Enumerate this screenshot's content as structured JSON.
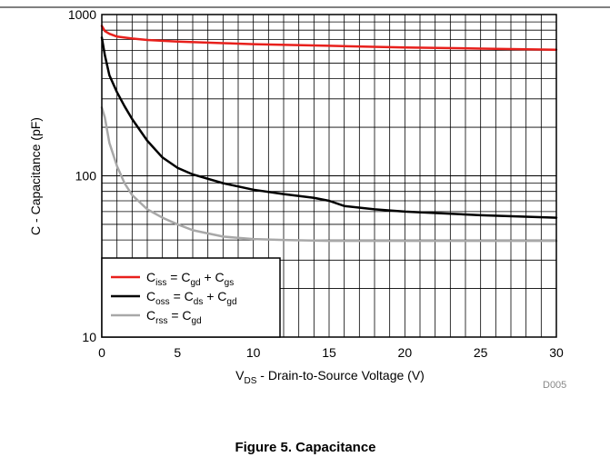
{
  "page": {
    "figure_code": "D005",
    "caption": "Figure 5. Capacitance"
  },
  "chart_data": {
    "type": "line",
    "xlabel": {
      "main": "V",
      "sub": "DS",
      "rest": " - Drain-to-Source Voltage (V)"
    },
    "ylabel": "C - Capacitance (pF)",
    "xlim": [
      0,
      30
    ],
    "ylim": [
      10,
      1000
    ],
    "yscale": "log",
    "grid": true,
    "legend_position": "bottom-left",
    "x_ticks": [
      0,
      5,
      10,
      15,
      20,
      25,
      30
    ],
    "y_ticks": [
      10,
      100,
      1000
    ],
    "colors": {
      "ciss": "#e8201c",
      "coss": "#000000",
      "crss": "#a8a8a8"
    },
    "series": [
      {
        "key": "ciss",
        "legend": [
          {
            "t": "C",
            "s": ""
          },
          {
            "t": "iss",
            "s": "sub"
          },
          {
            "t": " = C",
            "s": ""
          },
          {
            "t": "gd",
            "s": "sub"
          },
          {
            "t": " + C",
            "s": ""
          },
          {
            "t": "gs",
            "s": "sub"
          }
        ],
        "x": [
          0,
          0.2,
          0.5,
          1,
          2,
          3,
          5,
          8,
          10,
          15,
          20,
          25,
          30
        ],
        "y": [
          850,
          790,
          760,
          730,
          710,
          695,
          680,
          665,
          655,
          640,
          625,
          615,
          605
        ]
      },
      {
        "key": "coss",
        "legend": [
          {
            "t": "C",
            "s": ""
          },
          {
            "t": "oss",
            "s": "sub"
          },
          {
            "t": " = C",
            "s": ""
          },
          {
            "t": "ds",
            "s": "sub"
          },
          {
            "t": " + C",
            "s": ""
          },
          {
            "t": "gd",
            "s": "sub"
          }
        ],
        "x": [
          0,
          0.2,
          0.5,
          1,
          1.5,
          2,
          3,
          4,
          5,
          6,
          8,
          10,
          12,
          14,
          15,
          16,
          18,
          20,
          25,
          30
        ],
        "y": [
          720,
          560,
          420,
          330,
          270,
          225,
          165,
          130,
          112,
          102,
          90,
          82,
          77,
          73,
          70,
          65,
          62,
          60,
          57,
          55
        ]
      },
      {
        "key": "crss",
        "legend": [
          {
            "t": "C",
            "s": ""
          },
          {
            "t": "rss",
            "s": "sub"
          },
          {
            "t": " = C",
            "s": ""
          },
          {
            "t": "gd",
            "s": "sub"
          }
        ],
        "x": [
          0,
          0.2,
          0.5,
          1,
          1.5,
          2,
          3,
          4,
          5,
          6,
          8,
          10,
          12,
          15,
          20,
          30
        ],
        "y": [
          265,
          230,
          160,
          115,
          90,
          76,
          62,
          55,
          50,
          46,
          42,
          40.5,
          40,
          39.5,
          39.5,
          39.5
        ]
      }
    ]
  }
}
